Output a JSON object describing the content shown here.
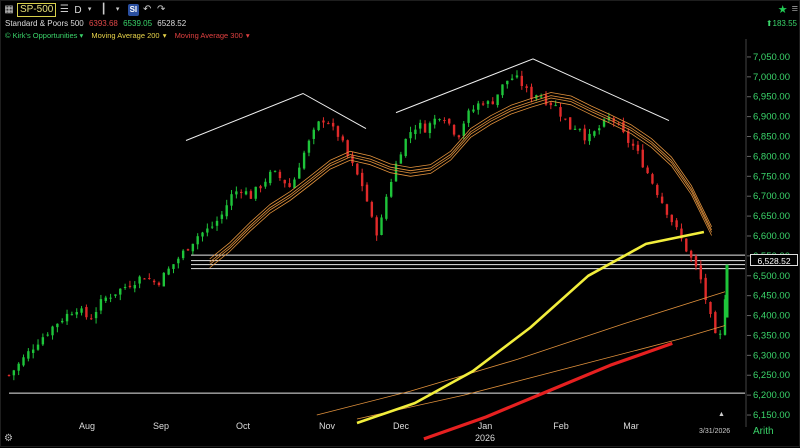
{
  "toolbar": {
    "symbol": "SP-500",
    "period": "D",
    "si_label": "SI",
    "icons": [
      "grid-icon",
      "list-icon",
      "candlestick-icon",
      "undo-icon",
      "redo-icon"
    ]
  },
  "header": {
    "name": "Standard & Poors 500",
    "low": "6393.68",
    "high": "6539.05",
    "last": "6528.52",
    "change": "183.55"
  },
  "legend": {
    "study1": "© Kirk's Opportunities",
    "study2": "Moving Average 200",
    "study3": "Moving Average 300"
  },
  "colors": {
    "up": "#1ec43a",
    "down": "#e02a2a",
    "ma200": "#f2ee3c",
    "ma300": "#e62020",
    "bands": "#e0913c",
    "axis_text": "#3ad46a"
  },
  "price_label": "6,528.52",
  "chart_data": {
    "type": "candlestick",
    "y_ticks": [
      "7,050.00",
      "7,000.00",
      "6,950.00",
      "6,900.00",
      "6,850.00",
      "6,800.00",
      "6,750.00",
      "6,700.00",
      "6,650.00",
      "6,600.00",
      "6,550.00",
      "6,500.00",
      "6,450.00",
      "6,400.00",
      "6,350.00",
      "6,300.00",
      "6,250.00",
      "6,200.00",
      "6,150.00"
    ],
    "ylim": [
      6140,
      7075
    ],
    "x_months": [
      "Aug",
      "Sep",
      "Oct",
      "Nov",
      "Dec",
      "Jan",
      "Feb",
      "Mar"
    ],
    "x_year": "2026",
    "last_date": "3/31/2026",
    "scale": "Arith",
    "close_path": [
      [
        0,
        6250
      ],
      [
        8,
        6280
      ],
      [
        20,
        6330
      ],
      [
        35,
        6380
      ],
      [
        50,
        6420
      ],
      [
        60,
        6390
      ],
      [
        70,
        6440
      ],
      [
        85,
        6470
      ],
      [
        100,
        6500
      ],
      [
        110,
        6480
      ],
      [
        120,
        6520
      ],
      [
        130,
        6560
      ],
      [
        140,
        6600
      ],
      [
        150,
        6620
      ],
      [
        158,
        6650
      ],
      [
        165,
        6700
      ],
      [
        172,
        6720
      ],
      [
        180,
        6700
      ],
      [
        188,
        6730
      ],
      [
        196,
        6760
      ],
      [
        204,
        6740
      ],
      [
        210,
        6720
      ],
      [
        217,
        6790
      ],
      [
        224,
        6840
      ],
      [
        230,
        6880
      ],
      [
        236,
        6900
      ],
      [
        240,
        6870
      ],
      [
        246,
        6850
      ],
      [
        252,
        6800
      ],
      [
        258,
        6760
      ],
      [
        264,
        6720
      ],
      [
        270,
        6640
      ],
      [
        275,
        6600
      ],
      [
        280,
        6690
      ],
      [
        286,
        6760
      ],
      [
        292,
        6820
      ],
      [
        298,
        6860
      ],
      [
        304,
        6880
      ],
      [
        310,
        6870
      ],
      [
        316,
        6890
      ],
      [
        322,
        6910
      ],
      [
        328,
        6880
      ],
      [
        334,
        6850
      ],
      [
        340,
        6900
      ],
      [
        346,
        6920
      ],
      [
        352,
        6940
      ],
      [
        358,
        6930
      ],
      [
        364,
        6960
      ],
      [
        370,
        6990
      ],
      [
        376,
        7000
      ],
      [
        382,
        6980
      ],
      [
        388,
        6950
      ],
      [
        394,
        6960
      ],
      [
        400,
        6940
      ],
      [
        406,
        6930
      ],
      [
        412,
        6900
      ],
      [
        418,
        6870
      ],
      [
        424,
        6880
      ],
      [
        430,
        6840
      ],
      [
        436,
        6860
      ],
      [
        442,
        6880
      ],
      [
        448,
        6900
      ],
      [
        454,
        6870
      ],
      [
        460,
        6840
      ],
      [
        466,
        6820
      ],
      [
        472,
        6780
      ],
      [
        478,
        6740
      ],
      [
        484,
        6700
      ],
      [
        490,
        6660
      ],
      [
        496,
        6620
      ],
      [
        502,
        6580
      ],
      [
        508,
        6540
      ],
      [
        514,
        6500
      ],
      [
        520,
        6420
      ],
      [
        526,
        6340
      ],
      [
        530,
        6350
      ],
      [
        535,
        6528
      ]
    ],
    "ma200": [
      [
        0,
        6130
      ],
      [
        60,
        6180
      ],
      [
        120,
        6260
      ],
      [
        180,
        6370
      ],
      [
        240,
        6500
      ],
      [
        300,
        6580
      ],
      [
        360,
        6610
      ],
      [
        420,
        6625
      ],
      [
        470,
        6640
      ],
      [
        500,
        6645
      ],
      [
        535,
        6648
      ]
    ],
    "ma300": [
      [
        0,
        6090
      ],
      [
        80,
        6145
      ],
      [
        160,
        6210
      ],
      [
        240,
        6275
      ],
      [
        320,
        6330
      ],
      [
        400,
        6350
      ],
      [
        470,
        6360
      ],
      [
        535,
        6365
      ]
    ],
    "horizontal_levels": [
      6552,
      6538,
      6528,
      6518,
      6205
    ],
    "trendlines": [
      [
        [
          185,
          6840
        ],
        [
          302,
          6958
        ],
        [
          365,
          6870
        ]
      ],
      [
        [
          395,
          6910
        ],
        [
          532,
          7045
        ],
        [
          668,
          6890
        ]
      ]
    ]
  }
}
